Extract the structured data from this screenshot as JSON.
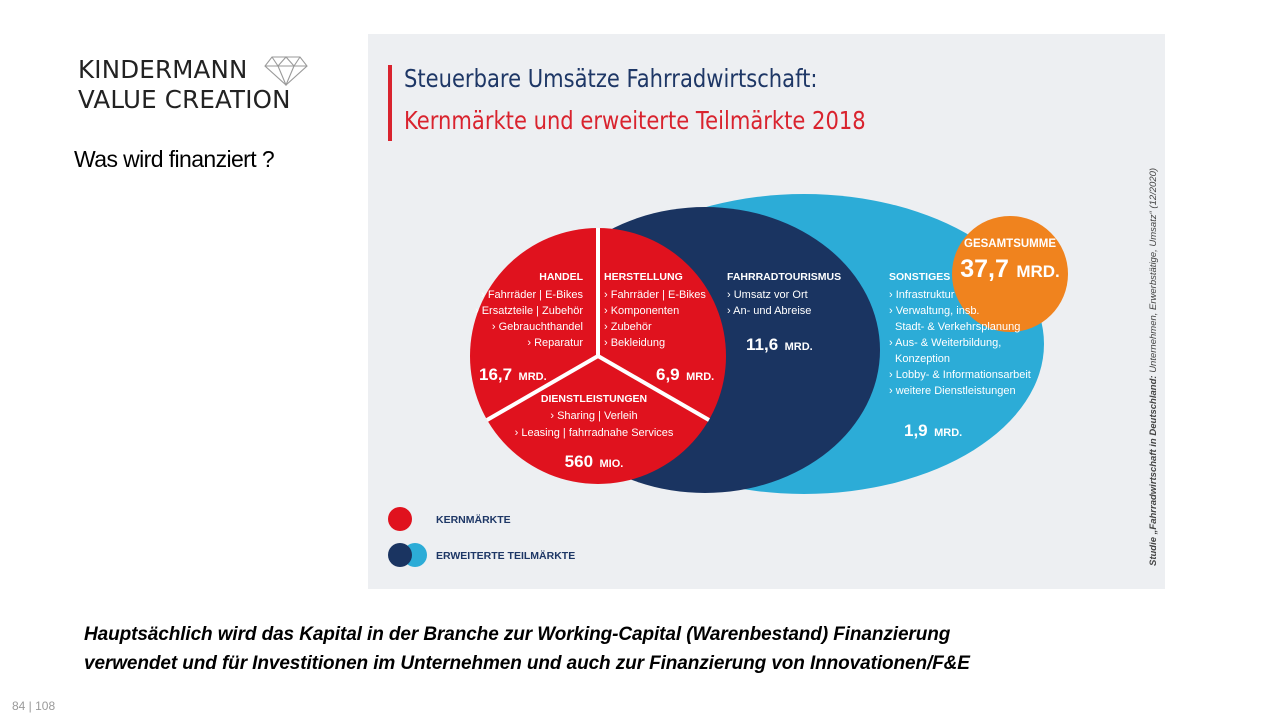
{
  "logo": {
    "line1": "KINDERMANN",
    "line2": "VALUE CREATION"
  },
  "heading": "Was wird finanziert ?",
  "infographic": {
    "title_line1": "Steuerbare Umsätze Fahrradwirtschaft:",
    "title_line2": "Kernmärkte und erweiterte Teilmärkte 2018",
    "source_bold": "Studie „Fahrradwirtschaft in Deutschland:",
    "source_rest": " Unternehmen, Erwerbstätige, Umsatz“ (12/2020)",
    "total": {
      "label": "GESAMTSUMME",
      "value": "37,7",
      "unit": "MRD."
    },
    "segments": {
      "handel": {
        "title": "HANDEL",
        "items": [
          "› Fahrräder | E-Bikes",
          "› Ersatzteile | Zubehör",
          "› Gebrauchthandel",
          "› Reparatur"
        ],
        "value": "16,7",
        "unit": "MRD."
      },
      "herstellung": {
        "title": "HERSTELLUNG",
        "items": [
          "› Fahrräder | E-Bikes",
          "› Komponenten",
          "› Zubehör",
          "› Bekleidung"
        ],
        "value": "6,9",
        "unit": "MRD."
      },
      "dienstleistungen": {
        "title": "DIENSTLEISTUNGEN",
        "items": [
          "› Sharing | Verleih",
          "› Leasing | fahrradnahe Services"
        ],
        "value": "560",
        "unit": "MIO."
      },
      "tourismus": {
        "title": "FAHRRADTOURISMUS",
        "items": [
          "› Umsatz vor Ort",
          "› An- und Abreise"
        ],
        "value": "11,6",
        "unit": "MRD."
      },
      "sonstiges": {
        "title": "SONSTIGES",
        "items": [
          "› Infrastruktur",
          "› Verwaltung, insb.",
          "Stadt- & Verkehrsplanung",
          "› Aus- & Weiterbildung,",
          "Konzeption",
          "› Lobby- & Informationsarbeit",
          "› weitere Dienstleistungen"
        ],
        "value": "1,9",
        "unit": "MRD."
      }
    },
    "legend": {
      "core": "KERNMÄRKTE",
      "extended": "ERWEITERTE TEILMÄRKTE"
    },
    "colors": {
      "red": "#e0121e",
      "navy": "#1a3461",
      "cyan": "#2cacd7",
      "orange": "#f0831e",
      "background": "#edeff2"
    }
  },
  "caption": {
    "line1": "Hauptsächlich wird das Kapital in der Branche zur Working-Capital (Warenbestand) Finanzierung",
    "line2": "verwendet und für Investitionen im Unternehmen und auch zur Finanzierung von Innovationen/F&E"
  },
  "page_number": "84 | 108"
}
